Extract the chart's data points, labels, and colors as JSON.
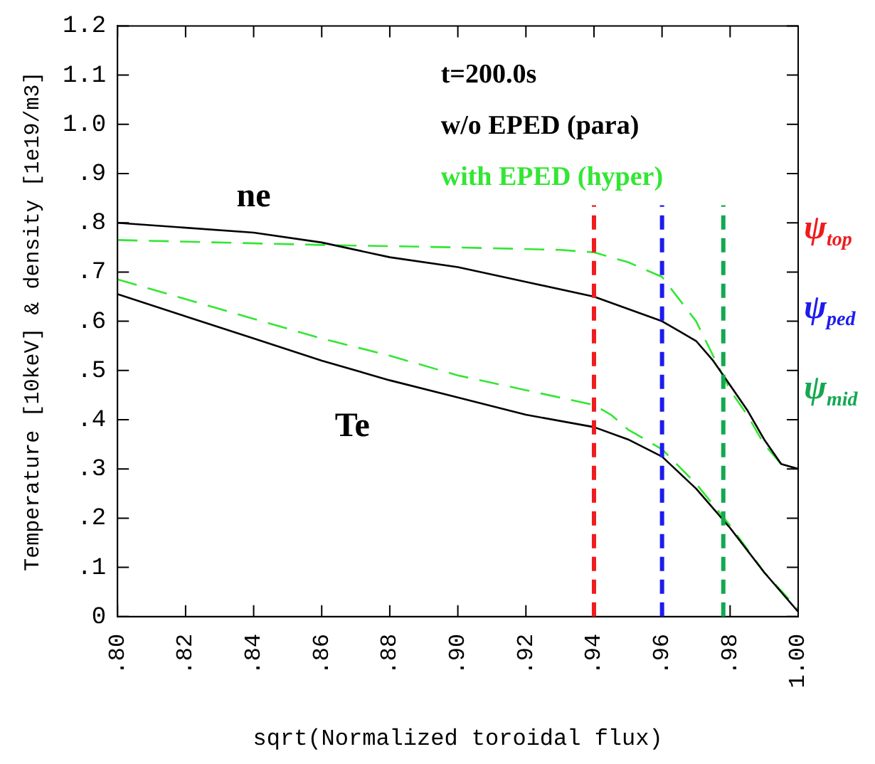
{
  "chart_data": {
    "type": "line",
    "xlabel": "sqrt(Normalized toroidal flux)",
    "ylabel": "Temperature [10keV] & density [1e19/m3]",
    "xlim": [
      0.8,
      1.0
    ],
    "xticks": [
      {
        "value": 0.8,
        "label": ".80"
      },
      {
        "value": 0.82,
        "label": ".82"
      },
      {
        "value": 0.84,
        "label": ".84"
      },
      {
        "value": 0.86,
        "label": ".86"
      },
      {
        "value": 0.88,
        "label": ".88"
      },
      {
        "value": 0.9,
        "label": ".90"
      },
      {
        "value": 0.92,
        "label": ".92"
      },
      {
        "value": 0.94,
        "label": ".94"
      },
      {
        "value": 0.96,
        "label": ".96"
      },
      {
        "value": 0.98,
        "label": ".98"
      },
      {
        "value": 1.0,
        "label": "1.00"
      }
    ],
    "ylim": [
      0,
      1.2
    ],
    "yticks": [
      0,
      {
        "value": 0.1,
        "label": ".1"
      },
      {
        "value": 0.2,
        "label": ".2"
      },
      {
        "value": 0.3,
        "label": ".3"
      },
      {
        "value": 0.4,
        "label": ".4"
      },
      {
        "value": 0.5,
        "label": ".5"
      },
      {
        "value": 0.6,
        "label": ".6"
      },
      {
        "value": 0.7,
        "label": ".7"
      },
      {
        "value": 0.8,
        "label": ".8"
      },
      {
        "value": 0.9,
        "label": ".9"
      },
      {
        "value": 1.0,
        "label": "1.0"
      },
      {
        "value": 1.1,
        "label": "1.1"
      },
      {
        "value": 1.2,
        "label": "1.2"
      }
    ],
    "grid": false,
    "legend": "top right",
    "marker": "none",
    "series": [
      {
        "name": "w/o EPED (para)",
        "color": "#000000",
        "line_style": "solid",
        "x": [
          0.8,
          0.84,
          0.86,
          0.88,
          0.9,
          0.92,
          0.94,
          0.96,
          0.965,
          0.97,
          0.975,
          0.98,
          0.985,
          0.99,
          0.995,
          1.0
        ],
        "values": [
          0.8,
          0.78,
          0.76,
          0.73,
          0.71,
          0.68,
          0.65,
          0.6,
          0.58,
          0.56,
          0.52,
          0.47,
          0.42,
          0.36,
          0.31,
          0.3
        ]
      },
      {
        "name": "with EPED (hyper)",
        "color": "#33e633",
        "line_style": "dashed",
        "x": [
          0.8,
          0.86,
          0.9,
          0.93,
          0.94,
          0.95,
          0.96,
          0.97,
          0.975,
          0.98,
          0.985,
          0.99,
          0.995,
          1.0
        ],
        "values": [
          0.765,
          0.755,
          0.75,
          0.745,
          0.74,
          0.72,
          0.69,
          0.6,
          0.53,
          0.46,
          0.41,
          0.35,
          0.31,
          0.3
        ]
      },
      {
        "color": "#000000",
        "line_style": "solid",
        "x": [
          0.8,
          0.82,
          0.84,
          0.86,
          0.88,
          0.9,
          0.92,
          0.94,
          0.95,
          0.96,
          0.97,
          0.98,
          0.99,
          1.0
        ],
        "values": [
          0.655,
          0.61,
          0.565,
          0.52,
          0.48,
          0.445,
          0.41,
          0.385,
          0.36,
          0.325,
          0.26,
          0.18,
          0.09,
          0.01
        ]
      },
      {
        "color": "#33e633",
        "line_style": "dashed",
        "x": [
          0.8,
          0.82,
          0.84,
          0.86,
          0.88,
          0.9,
          0.92,
          0.94,
          0.945,
          0.95,
          0.96,
          0.97,
          0.98,
          0.99,
          1.0
        ],
        "values": [
          0.685,
          0.645,
          0.605,
          0.565,
          0.53,
          0.49,
          0.46,
          0.43,
          0.41,
          0.38,
          0.34,
          0.27,
          0.185,
          0.09,
          0.015
        ]
      }
    ],
    "ref_lines": [
      {
        "axis": "x",
        "value": 0.94,
        "label": "ψ$_{top}$",
        "color": "#ee1c1c",
        "line_style": "dashed"
      },
      {
        "axis": "x",
        "value": 0.96,
        "label": "ψ$_{ped}$",
        "color": "#1c1cee",
        "line_style": "dashed"
      },
      {
        "axis": "x",
        "value": 0.978,
        "label": "ψ$_{mid}$",
        "color": "#14a850",
        "line_style": "dashed"
      }
    ],
    "annotations": [
      "t=200.0s",
      "ne",
      "Te"
    ]
  }
}
